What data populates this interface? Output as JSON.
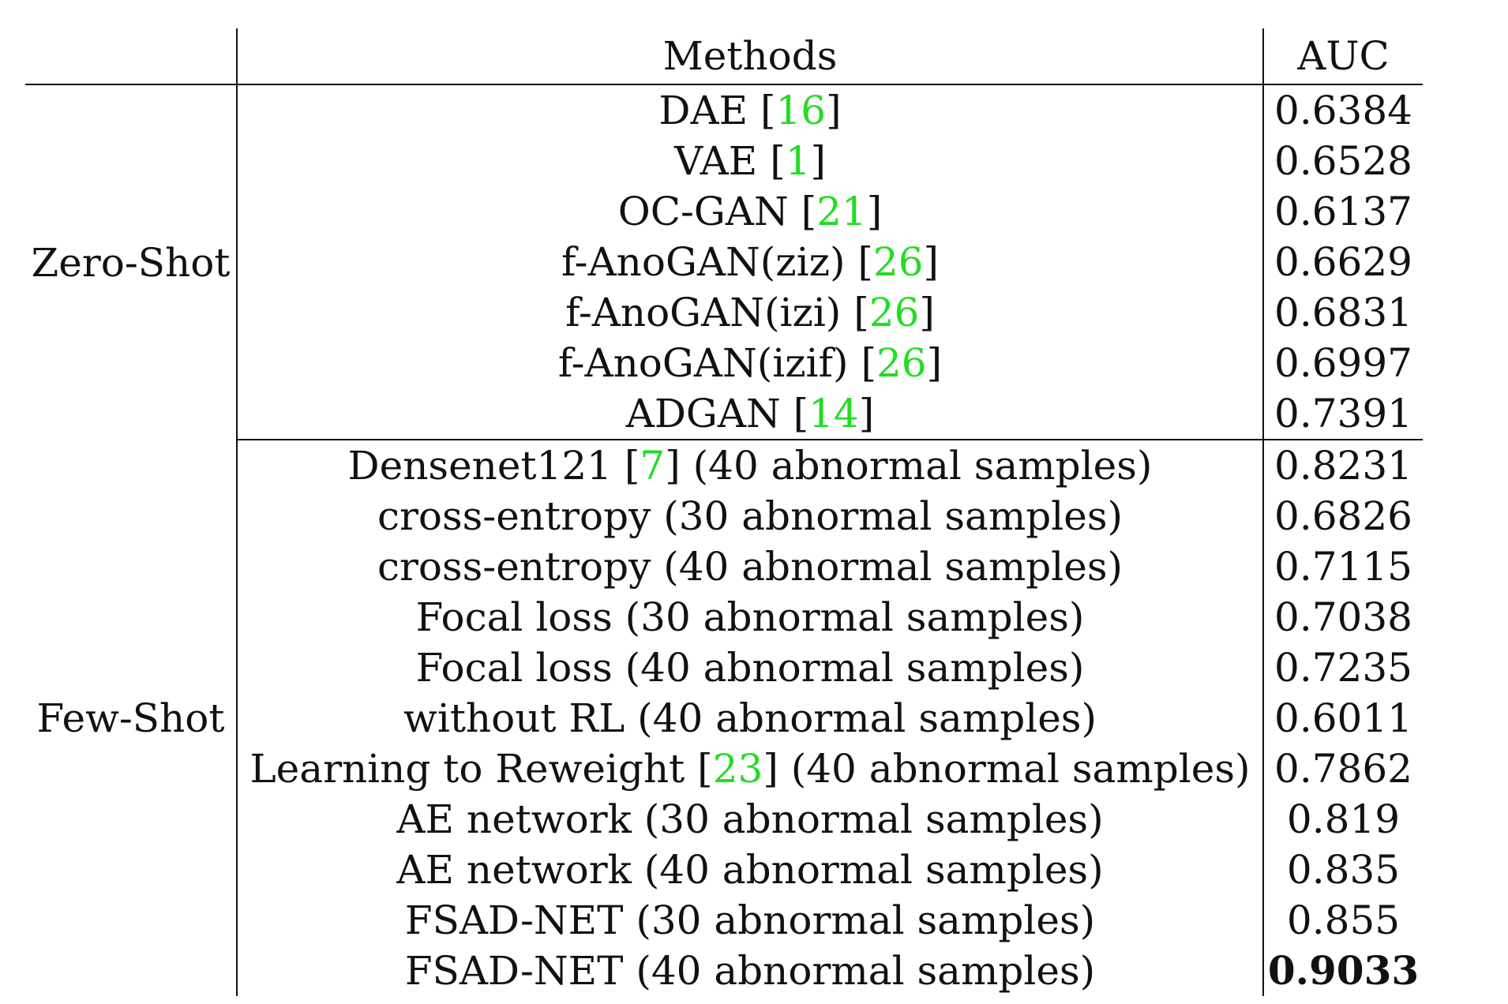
{
  "header": {
    "group": "",
    "methods": "Methods",
    "auc": "AUC"
  },
  "groups": [
    {
      "label": "Zero-Shot",
      "rows": [
        {
          "method": "DAE",
          "cite": "16",
          "suffix": "",
          "auc": "0.6384"
        },
        {
          "method": "VAE",
          "cite": "1",
          "suffix": "",
          "auc": "0.6528"
        },
        {
          "method": "OC-GAN",
          "cite": "21",
          "suffix": "",
          "auc": "0.6137"
        },
        {
          "method": "f-AnoGAN(ziz)",
          "cite": "26",
          "suffix": "",
          "auc": "0.6629"
        },
        {
          "method": "f-AnoGAN(izi)",
          "cite": "26",
          "suffix": "",
          "auc": "0.6831"
        },
        {
          "method": "f-AnoGAN(izif)",
          "cite": "26",
          "suffix": "",
          "auc": "0.6997"
        },
        {
          "method": "ADGAN",
          "cite": "14",
          "suffix": "",
          "auc": "0.7391"
        }
      ]
    },
    {
      "label": "Few-Shot",
      "rows": [
        {
          "method": "Densenet121",
          "cite": "7",
          "suffix": "(40 abnormal samples)",
          "auc": "0.8231"
        },
        {
          "method": "cross-entropy (30 abnormal samples)",
          "cite": "",
          "suffix": "",
          "auc": "0.6826"
        },
        {
          "method": "cross-entropy (40 abnormal samples)",
          "cite": "",
          "suffix": "",
          "auc": "0.7115"
        },
        {
          "method": "Focal loss (30 abnormal samples)",
          "cite": "",
          "suffix": "",
          "auc": "0.7038"
        },
        {
          "method": "Focal loss (40 abnormal samples)",
          "cite": "",
          "suffix": "",
          "auc": "0.7235"
        },
        {
          "method": "without RL (40 abnormal samples)",
          "cite": "",
          "suffix": "",
          "auc": "0.6011"
        },
        {
          "method": "Learning to Reweight",
          "cite": "23",
          "suffix": "(40 abnormal samples)",
          "auc": "0.7862"
        },
        {
          "method": "AE network (30 abnormal samples)",
          "cite": "",
          "suffix": "",
          "auc": "0.819"
        },
        {
          "method": "AE network (40 abnormal samples)",
          "cite": "",
          "suffix": "",
          "auc": "0.835"
        },
        {
          "method": "FSAD-NET (30 abnormal samples)",
          "cite": "",
          "suffix": "",
          "auc": "0.855"
        },
        {
          "method": "FSAD-NET (40 abnormal samples)",
          "cite": "",
          "suffix": "",
          "auc": "0.9033",
          "best": true
        }
      ]
    }
  ]
}
